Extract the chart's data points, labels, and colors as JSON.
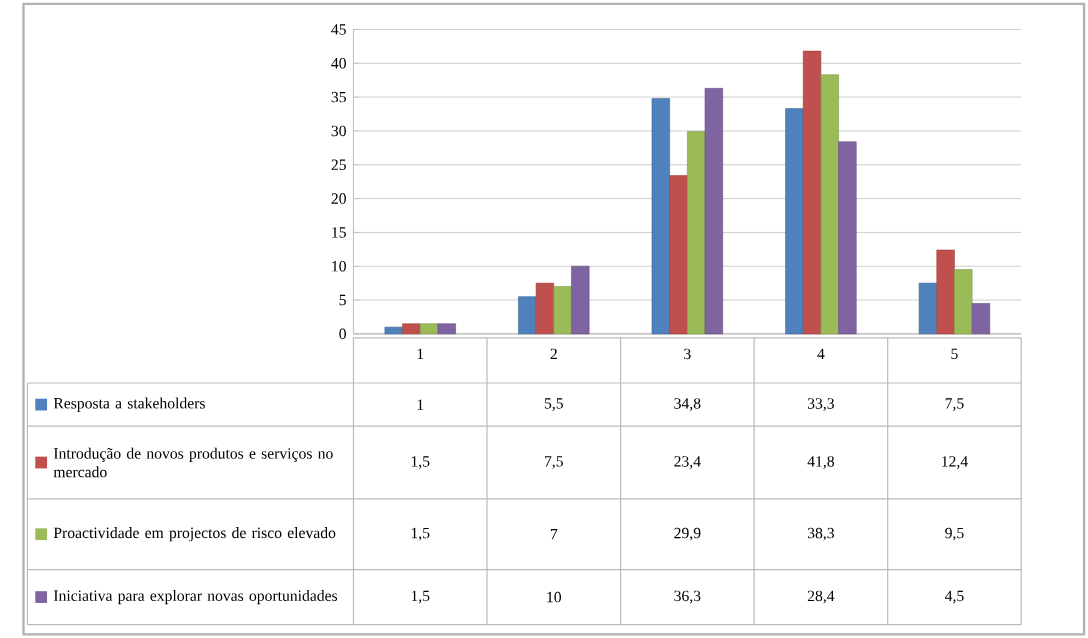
{
  "chart_data": {
    "type": "bar",
    "categories": [
      "1",
      "2",
      "3",
      "4",
      "5"
    ],
    "series": [
      {
        "name": "Resposta a stakeholders",
        "color": "#4f81bd",
        "values": [
          1,
          5.5,
          34.8,
          33.3,
          7.5
        ],
        "value_labels": [
          "1",
          "5,5",
          "34,8",
          "33,3",
          "7,5"
        ]
      },
      {
        "name": "Introdução de novos produtos e serviços no mercado",
        "color": "#c0504d",
        "values": [
          1.5,
          7.5,
          23.4,
          41.8,
          12.4
        ],
        "value_labels": [
          "1,5",
          "7,5",
          "23,4",
          "41,8",
          "12,4"
        ]
      },
      {
        "name": "Proactividade em projectos de risco elevado",
        "color": "#9bbb59",
        "values": [
          1.5,
          7,
          29.9,
          38.3,
          9.5
        ],
        "value_labels": [
          "1,5",
          "7",
          "29,9",
          "38,3",
          "9,5"
        ]
      },
      {
        "name": "Iniciativa para explorar novas oportunidades",
        "color": "#8064a2",
        "values": [
          1.5,
          10,
          36.3,
          28.4,
          4.5
        ],
        "value_labels": [
          "1,5",
          "10",
          "36,3",
          "28,4",
          "4,5"
        ]
      }
    ],
    "ylim": [
      0,
      45
    ],
    "yticks": [
      0,
      5,
      10,
      15,
      20,
      25,
      30,
      35,
      40,
      45
    ],
    "grid": "y",
    "legend": "bottom"
  }
}
